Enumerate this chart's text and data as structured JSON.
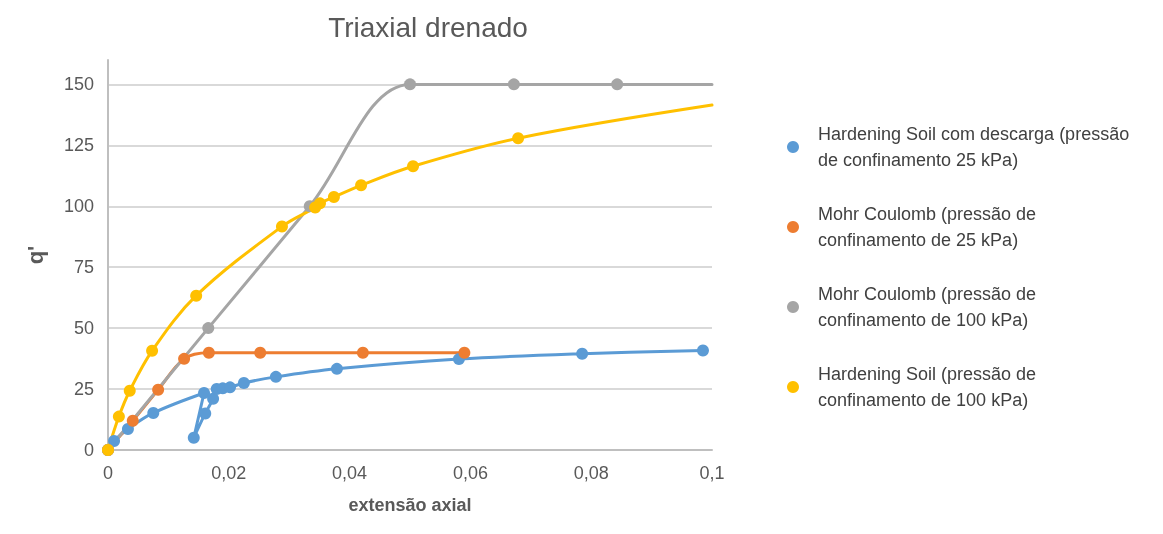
{
  "chart_data": {
    "type": "line",
    "title": "Triaxial drenado",
    "xlabel": "extensão axial",
    "ylabel": "q'",
    "xlim": [
      0,
      0.1
    ],
    "xticks": [
      {
        "value": 0,
        "label": "0"
      },
      {
        "value": 0.02,
        "label": "0,02"
      },
      {
        "value": 0.04,
        "label": "0,04"
      },
      {
        "value": 0.06,
        "label": "0,06"
      },
      {
        "value": 0.08,
        "label": "0,08"
      },
      {
        "value": 0.1,
        "label": "0,1"
      }
    ],
    "ylim": [
      0,
      160
    ],
    "yticks": [
      0,
      25,
      50,
      75,
      100,
      125,
      150
    ],
    "grid": "y",
    "legend": "right",
    "marker": "circle",
    "line_style": "solid",
    "series": [
      {
        "name": "Hardening Soil com descarga (pressão de confinamento 25 kPa)",
        "color": "#5b9bd5",
        "x": [
          0,
          0.001,
          0.0033,
          0.0075,
          0.0159,
          0.0142,
          0.0161,
          0.0174,
          0.018,
          0.019,
          0.0202,
          0.0225,
          0.0278,
          0.0379,
          0.0581,
          0.0785,
          0.0985
        ],
        "values": [
          0,
          3.7,
          8.6,
          15.2,
          23.4,
          5,
          15,
          21,
          25,
          25.3,
          25.7,
          27.5,
          30,
          33.3,
          37.3,
          39.5,
          40.8
        ]
      },
      {
        "name": "Mohr Coulomb (pressão de confinamento de 25 kPa)",
        "color": "#ed7d31",
        "x": [
          0,
          0.0041,
          0.0083,
          0.0126,
          0.0167,
          0.0252,
          0.0422,
          0.059
        ],
        "values": [
          0,
          12,
          24.7,
          37.4,
          39.9,
          39.9,
          39.9,
          39.9
        ]
      },
      {
        "name": "Mohr Coulomb (pressão de confinamento de 100 kPa)",
        "color": "#a5a5a5",
        "x": [
          0,
          0.0166,
          0.0334,
          0.05,
          0.0672,
          0.0843,
          0.1
        ],
        "values": [
          0,
          50,
          100,
          150,
          150,
          150,
          150
        ]
      },
      {
        "name": "Hardening Soil (pressão de confinamento de 100 kPa)",
        "color": "#ffc000",
        "x": [
          0,
          0.0018,
          0.0036,
          0.0073,
          0.0146,
          0.0288,
          0.0343,
          0.0351,
          0.0374,
          0.0419,
          0.0505,
          0.0679,
          0.1
        ],
        "values": [
          0,
          13.7,
          24.3,
          40.7,
          63.3,
          91.7,
          99.5,
          101.2,
          103.8,
          108.6,
          116.4,
          127.9,
          141.5
        ]
      }
    ]
  }
}
